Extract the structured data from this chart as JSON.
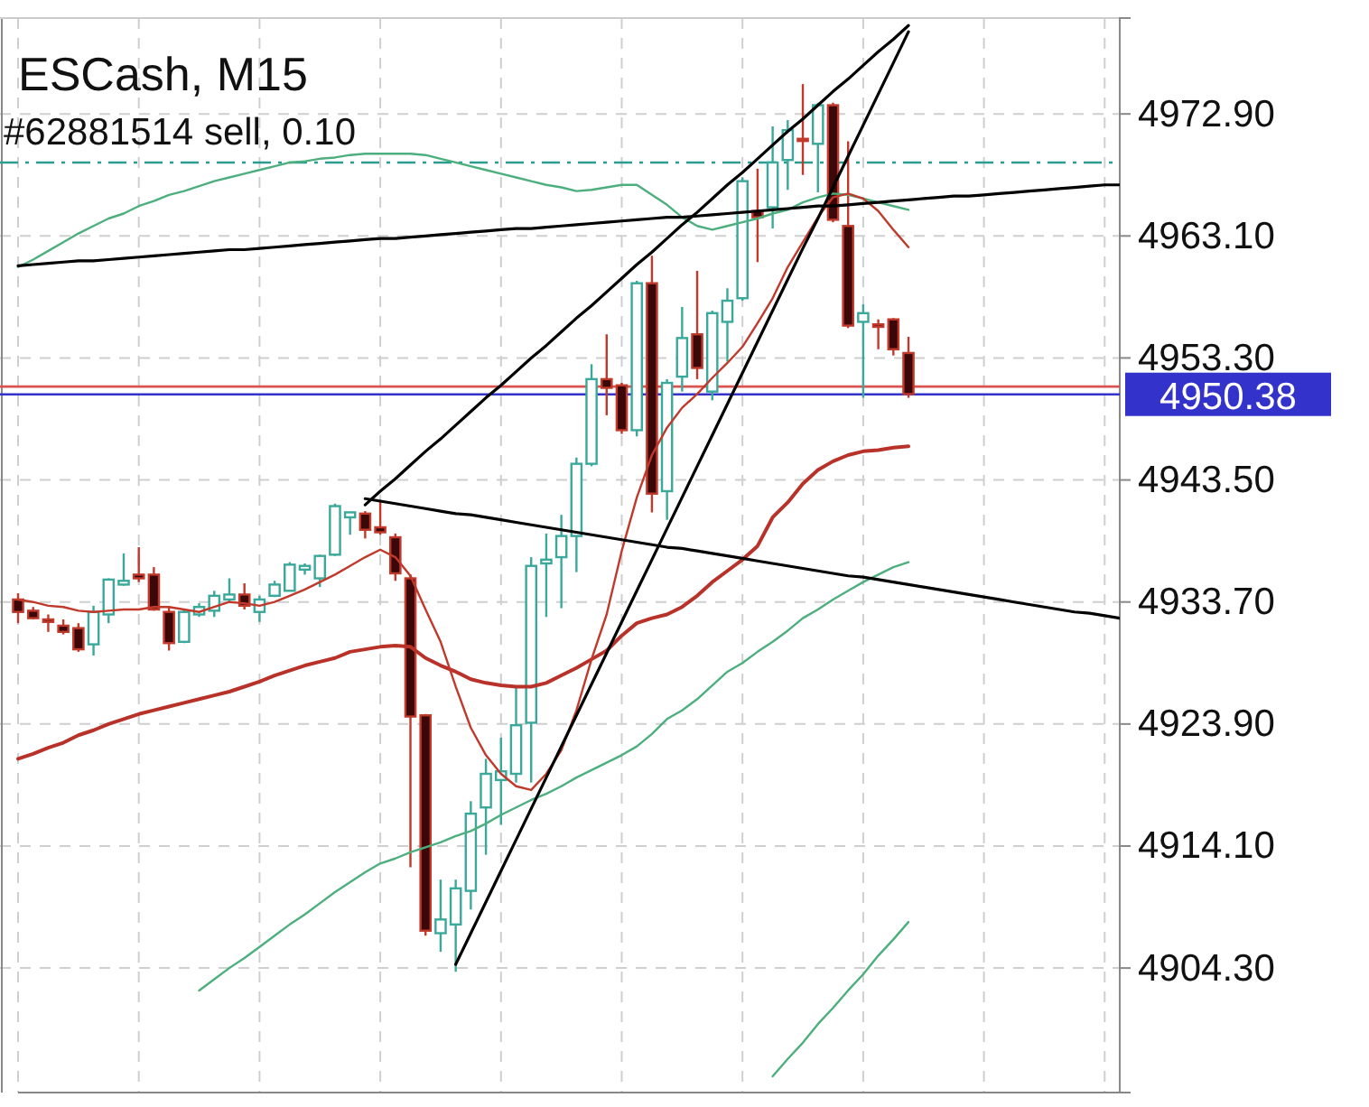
{
  "chart_data": {
    "type": "candlestick",
    "title": "ESCash, M15",
    "subtitle": "#62881514 sell, 0.10",
    "categories": [
      null,
      null,
      null,
      null,
      null,
      null,
      null,
      null,
      null,
      null,
      null,
      null,
      null,
      null,
      null,
      null,
      null,
      null,
      null,
      null,
      null,
      null,
      null,
      null,
      null,
      null,
      null,
      null,
      null,
      null,
      null,
      null,
      null,
      null,
      null,
      null,
      null,
      null,
      null,
      null,
      null,
      null,
      null,
      null,
      null,
      null,
      null,
      null,
      null,
      null,
      null,
      null,
      null,
      null,
      null,
      null,
      null,
      null,
      null,
      null,
      null,
      null,
      null,
      null,
      null,
      null,
      null,
      null,
      null,
      null,
      null,
      null,
      null,
      null
    ],
    "ohlc": [
      [
        4933.9,
        4934.4,
        4932.0,
        4932.9
      ],
      [
        4933.0,
        4933.3,
        4932.3,
        4932.4
      ],
      [
        4932.3,
        4932.7,
        4931.3,
        4932.1
      ],
      [
        4931.8,
        4932.3,
        4931.1,
        4931.3
      ],
      [
        4931.6,
        4932.0,
        4929.7,
        4929.9
      ],
      [
        4930.3,
        4933.4,
        4929.4,
        4932.9
      ],
      [
        4932.7,
        4935.6,
        4932.0,
        4935.5
      ],
      [
        4935.1,
        4937.6,
        4935.0,
        4935.4
      ],
      [
        4935.9,
        4938.1,
        4935.3,
        4935.6
      ],
      [
        4935.9,
        4936.5,
        4933.0,
        4933.1
      ],
      [
        4932.9,
        4933.3,
        4929.8,
        4930.4
      ],
      [
        4930.5,
        4933.1,
        4930.4,
        4932.9
      ],
      [
        4932.7,
        4933.6,
        4932.5,
        4933.3
      ],
      [
        4933.0,
        4934.6,
        4932.5,
        4934.2
      ],
      [
        4933.9,
        4935.6,
        4933.6,
        4934.3
      ],
      [
        4934.3,
        4935.2,
        4933.1,
        4933.4
      ],
      [
        4932.9,
        4934.2,
        4932.1,
        4933.9
      ],
      [
        4934.2,
        4935.4,
        4934.1,
        4935.1
      ],
      [
        4934.6,
        4936.9,
        4934.6,
        4936.7
      ],
      [
        4936.3,
        4936.8,
        4935.9,
        4936.6
      ],
      [
        4935.6,
        4937.5,
        4934.9,
        4937.4
      ],
      [
        4937.5,
        4941.6,
        4937.4,
        4941.4
      ],
      [
        4940.5,
        4940.9,
        4939.1,
        4940.9
      ],
      [
        4940.8,
        4941.0,
        4938.8,
        4939.5
      ],
      [
        4939.7,
        4941.9,
        4939.1,
        4939.3
      ],
      [
        4938.9,
        4939.2,
        4935.4,
        4936.0
      ],
      [
        4935.6,
        4935.9,
        4912.4,
        4924.5
      ],
      [
        4924.6,
        4924.7,
        4906.9,
        4907.3
      ],
      [
        4907.1,
        4911.4,
        4905.6,
        4908.2
      ],
      [
        4907.8,
        4911.4,
        4904.0,
        4910.7
      ],
      [
        4910.5,
        4917.7,
        4909.0,
        4916.7
      ],
      [
        4917.2,
        4921.1,
        4913.4,
        4919.9
      ],
      [
        4919.4,
        4922.8,
        4915.8,
        4920.1
      ],
      [
        4919.9,
        4926.9,
        4919.2,
        4923.8
      ],
      [
        4924.0,
        4937.3,
        4919.2,
        4936.6
      ],
      [
        4936.8,
        4939.2,
        4932.5,
        4937.1
      ],
      [
        4937.3,
        4940.7,
        4933.2,
        4939.0
      ],
      [
        4939.0,
        4945.3,
        4936.1,
        4944.8
      ],
      [
        4944.8,
        4952.8,
        4944.6,
        4951.6
      ],
      [
        4951.6,
        4955.2,
        4948.7,
        4950.9
      ],
      [
        4951.1,
        4951.3,
        4947.2,
        4947.5
      ],
      [
        4947.5,
        4959.5,
        4947.0,
        4959.3
      ],
      [
        4959.3,
        4961.5,
        4940.9,
        4942.4
      ],
      [
        4942.6,
        4951.6,
        4940.3,
        4951.3
      ],
      [
        4951.8,
        4957.4,
        4950.6,
        4954.9
      ],
      [
        4955.2,
        4960.3,
        4951.6,
        4952.5
      ],
      [
        4950.6,
        4957.1,
        4949.9,
        4956.9
      ],
      [
        4956.2,
        4958.9,
        4953.0,
        4957.9
      ],
      [
        4958.1,
        4967.8,
        4957.9,
        4967.5
      ],
      [
        4965.1,
        4968.5,
        4961.0,
        4964.6
      ],
      [
        4965.4,
        4971.9,
        4963.7,
        4969.0
      ],
      [
        4969.2,
        4972.4,
        4966.8,
        4971.6
      ],
      [
        4970.9,
        4975.3,
        4968.0,
        4970.8
      ],
      [
        4970.5,
        4973.8,
        4966.6,
        4973.6
      ],
      [
        4973.6,
        4973.8,
        4964.2,
        4964.4
      ],
      [
        4963.9,
        4970.7,
        4955.7,
        4955.9
      ],
      [
        4956.2,
        4957.6,
        4950.1,
        4956.9
      ],
      [
        4956.0,
        4956.4,
        4954.0,
        4955.8
      ],
      [
        4956.4,
        4956.5,
        4953.5,
        4954.0
      ],
      [
        4953.7,
        4955.0,
        4950.1,
        4950.4
      ],
      null,
      null,
      null,
      null,
      null,
      null,
      null,
      null,
      null,
      null,
      null,
      null,
      null,
      null
    ],
    "series": [
      {
        "type": "line",
        "color": "#4caf7d",
        "values": [
          4960.6,
          4961.2,
          4961.9,
          4962.6,
          4963.3,
          4963.9,
          4964.5,
          4964.9,
          4965.5,
          4965.9,
          4966.4,
          4966.7,
          4967.1,
          4967.5,
          4967.8,
          4968.1,
          4968.4,
          4968.7,
          4969.0,
          4969.1,
          4969.3,
          4969.4,
          4969.6,
          4969.7,
          4969.7,
          4969.7,
          4969.7,
          4969.6,
          4969.3,
          4969.0,
          4968.7,
          4968.4,
          4968.1,
          4967.8,
          4967.5,
          4967.2,
          4967.0,
          4966.7,
          4966.8,
          4967.0,
          4967.2,
          4967.2,
          4966.4,
          4965.6,
          4964.6,
          4963.9,
          4963.6,
          4963.9,
          4964.2,
          4964.5,
          4964.9,
          4965.2,
          4965.8,
          4966.2,
          4966.5,
          4966.4,
          4966.1,
          4965.8,
          4965.5,
          4965.2,
          null,
          null,
          null,
          null,
          null,
          null,
          null,
          null,
          null,
          null,
          null,
          null,
          null,
          null
        ]
      },
      {
        "type": "line",
        "color": "#4caf7d",
        "values": [
          null,
          null,
          null,
          null,
          null,
          null,
          null,
          null,
          null,
          null,
          null,
          null,
          4902.5,
          4903.4,
          4904.3,
          4905.1,
          4906.0,
          4906.9,
          4907.8,
          4908.6,
          4909.5,
          4910.4,
          4911.2,
          4912.0,
          4912.7,
          4913.1,
          4913.6,
          4914.0,
          4914.4,
          4914.9,
          4915.3,
          4915.9,
          4916.6,
          4917.2,
          4917.8,
          4918.3,
          4918.9,
          4919.6,
          4920.2,
          4920.8,
          4921.4,
          4922.1,
          4923.1,
          4924.3,
          4925.0,
          4925.9,
          4927.0,
          4928.1,
          4928.8,
          4929.7,
          4930.5,
          4931.4,
          4932.4,
          4933.1,
          4933.9,
          4934.6,
          4935.3,
          4935.9,
          4936.5,
          4936.9,
          null,
          null,
          null,
          null,
          null,
          null,
          null,
          null,
          null,
          null,
          null,
          null,
          null,
          null
        ]
      },
      {
        "type": "line",
        "color": "#4caf7d",
        "values": [
          null,
          null,
          null,
          null,
          null,
          null,
          null,
          null,
          null,
          null,
          null,
          null,
          null,
          null,
          null,
          null,
          null,
          null,
          null,
          null,
          null,
          null,
          null,
          null,
          null,
          null,
          null,
          null,
          null,
          null,
          null,
          null,
          null,
          null,
          null,
          null,
          null,
          null,
          null,
          null,
          null,
          null,
          null,
          null,
          null,
          null,
          null,
          null,
          null,
          null,
          4895.6,
          4897.0,
          4898.3,
          4899.8,
          4901.1,
          4902.5,
          4903.8,
          4905.3,
          4906.6,
          4908.0,
          null,
          null,
          null,
          null,
          null,
          null,
          null,
          null,
          null,
          null,
          null,
          null,
          null,
          null
        ]
      },
      {
        "type": "line",
        "color": "#b8322a",
        "values": [
          4921.1,
          4921.5,
          4922.0,
          4922.4,
          4923.0,
          4923.4,
          4923.9,
          4924.3,
          4924.7,
          4925.0,
          4925.3,
          4925.6,
          4925.9,
          4926.2,
          4926.5,
          4926.9,
          4927.3,
          4927.8,
          4928.2,
          4928.6,
          4928.9,
          4929.2,
          4929.7,
          4929.9,
          4930.1,
          4930.2,
          4930.1,
          4929.2,
          4928.6,
          4928.1,
          4927.5,
          4927.2,
          4927.0,
          4926.9,
          4926.9,
          4927.2,
          4927.8,
          4928.4,
          4929.1,
          4929.8,
          4931.0,
          4932.0,
          4932.4,
          4932.7,
          4933.3,
          4934.2,
          4935.3,
          4936.2,
          4937.1,
          4938.2,
          4940.5,
          4941.7,
          4943.2,
          4944.3,
          4945.0,
          4945.5,
          4945.8,
          4945.9,
          4946.1,
          4946.2,
          null,
          null,
          null,
          null,
          null,
          null,
          null,
          null,
          null,
          null,
          null,
          null,
          null,
          null
        ]
      },
      {
        "type": "line",
        "color": "#c0392b",
        "values": [
          4933.9,
          4933.7,
          4933.4,
          4933.3,
          4933.0,
          4932.9,
          4933.0,
          4933.1,
          4933.1,
          4933.3,
          4933.3,
          4933.1,
          4932.9,
          4933.3,
          4933.7,
          4933.6,
          4933.4,
          4933.7,
          4934.2,
          4934.7,
          4935.3,
          4935.9,
          4936.6,
          4937.3,
          4937.9,
          4937.3,
          4935.8,
          4933.1,
          4930.5,
          4926.9,
          4923.6,
          4921.4,
          4919.9,
          4918.9,
          4918.6,
          4919.9,
          4921.8,
          4925.0,
          4929.1,
          4932.7,
          4937.8,
          4942.1,
          4945.5,
          4947.7,
          4949.3,
          4950.4,
          4951.7,
          4952.9,
          4954.2,
          4956.1,
          4958.1,
          4960.6,
          4962.6,
          4964.6,
          4966.2,
          4966.5,
          4966.1,
          4965.1,
          4963.6,
          4962.2,
          null,
          null,
          null,
          null,
          null,
          null,
          null,
          null,
          null,
          null,
          null,
          null,
          null,
          null
        ]
      },
      {
        "type": "line",
        "color": "#000000",
        "values": [
          null,
          null,
          null,
          null,
          null,
          null,
          null,
          null,
          null,
          null,
          null,
          null,
          null,
          null,
          null,
          null,
          null,
          null,
          null,
          null,
          null,
          null,
          null,
          4941.5,
          4942.6,
          4943.6,
          4944.7,
          4945.8,
          4946.8,
          4947.9,
          4949.0,
          4950.1,
          4951.1,
          4952.2,
          4953.3,
          4954.3,
          4955.4,
          4956.5,
          4957.5,
          4958.6,
          4959.7,
          4960.8,
          4961.8,
          4962.9,
          4964.0,
          4965.0,
          4966.1,
          4967.2,
          4968.2,
          4969.3,
          4970.4,
          4971.5,
          4972.5,
          4973.6,
          4974.7,
          4975.7,
          4976.8,
          4977.9,
          4978.9,
          4980.0,
          null,
          null,
          null,
          null,
          null,
          null,
          null,
          null,
          null,
          null,
          null,
          null,
          null,
          null
        ]
      },
      {
        "type": "line",
        "color": "#000000",
        "values": [
          null,
          null,
          null,
          null,
          null,
          null,
          null,
          null,
          null,
          null,
          null,
          null,
          null,
          null,
          null,
          null,
          null,
          null,
          null,
          null,
          null,
          null,
          null,
          null,
          null,
          null,
          null,
          null,
          null,
          4904.6,
          4907.1,
          4909.6,
          4912.1,
          4914.6,
          4917.1,
          4919.6,
          4922.1,
          4924.6,
          4927.1,
          4929.6,
          4932.1,
          4934.6,
          4937.1,
          4939.6,
          4942.1,
          4944.6,
          4947.1,
          4949.6,
          4952.1,
          4954.6,
          4957.1,
          4959.6,
          4962.1,
          4964.5,
          4967.0,
          4969.5,
          4972.0,
          4974.5,
          4977.0,
          4979.5,
          null,
          null,
          null,
          null,
          null,
          null,
          null,
          null,
          null,
          null,
          null,
          null,
          null,
          null
        ]
      },
      {
        "type": "line",
        "color": "#000000",
        "values": [
          4960.7,
          4960.8,
          4960.9,
          4961.0,
          4961.1,
          4961.1,
          4961.2,
          4961.3,
          4961.4,
          4961.5,
          4961.6,
          4961.7,
          4961.8,
          4961.9,
          4962.0,
          4962.0,
          4962.1,
          4962.2,
          4962.3,
          4962.4,
          4962.5,
          4962.6,
          4962.7,
          4962.8,
          4962.9,
          4962.9,
          4963.0,
          4963.1,
          4963.2,
          4963.3,
          4963.4,
          4963.5,
          4963.6,
          4963.7,
          4963.7,
          4963.8,
          4963.9,
          4964.0,
          4964.1,
          4964.2,
          4964.3,
          4964.4,
          4964.5,
          4964.6,
          4964.6,
          4964.7,
          4964.8,
          4964.9,
          4965.0,
          4965.1,
          4965.2,
          4965.3,
          4965.4,
          4965.5,
          4965.5,
          4965.6,
          4965.7,
          4965.8,
          4965.9,
          4966.0,
          4966.1,
          4966.2,
          4966.3,
          4966.3,
          4966.4,
          4966.5,
          4966.6,
          4966.7,
          4966.8,
          4966.9,
          4967.0,
          4967.1,
          4967.2,
          4967.2
        ]
      },
      {
        "type": "line",
        "color": "#000000",
        "values": [
          null,
          null,
          null,
          null,
          null,
          null,
          null,
          null,
          null,
          null,
          null,
          null,
          null,
          null,
          null,
          null,
          null,
          null,
          null,
          null,
          null,
          null,
          null,
          4942.0,
          4941.8,
          4941.6,
          4941.4,
          4941.2,
          4941.0,
          4940.8,
          4940.7,
          4940.5,
          4940.3,
          4940.1,
          4939.9,
          4939.7,
          4939.5,
          4939.3,
          4939.1,
          4938.9,
          4938.7,
          4938.5,
          4938.3,
          4938.1,
          4938.0,
          4937.8,
          4937.6,
          4937.4,
          4937.2,
          4937.0,
          4936.8,
          4936.6,
          4936.4,
          4936.2,
          4936.0,
          4935.8,
          4935.7,
          4935.5,
          4935.3,
          4935.1,
          4934.9,
          4934.7,
          4934.5,
          4934.3,
          4934.1,
          4933.9,
          4933.7,
          4933.5,
          4933.3,
          4933.1,
          4932.9,
          4932.8,
          4932.6,
          4932.4
        ]
      }
    ],
    "ref_lines": [
      {
        "axis": "y",
        "value": 4969.0,
        "color": "#2a9d8f",
        "line_style": "dashed"
      },
      {
        "axis": "y",
        "value": 4951.0,
        "color": "#d9534f"
      },
      {
        "axis": "y",
        "value": 4950.38,
        "label": "4950.38",
        "color": "#3333cc"
      }
    ],
    "ylim": [
      4894.3,
      4980.6
    ],
    "yticks": [
      {
        "value": 4904.3,
        "label": "4904.30"
      },
      {
        "value": 4914.1,
        "label": "4914.10"
      },
      {
        "value": 4923.9,
        "label": "4923.90"
      },
      {
        "value": 4933.7,
        "label": "4933.70"
      },
      {
        "value": 4943.5,
        "label": "4943.50"
      },
      {
        "value": 4953.3,
        "label": "4953.30"
      },
      {
        "value": 4963.1,
        "label": "4963.10"
      },
      {
        "value": 4972.9,
        "label": "4972.90"
      }
    ],
    "grid": true,
    "tick_labels": "y"
  }
}
